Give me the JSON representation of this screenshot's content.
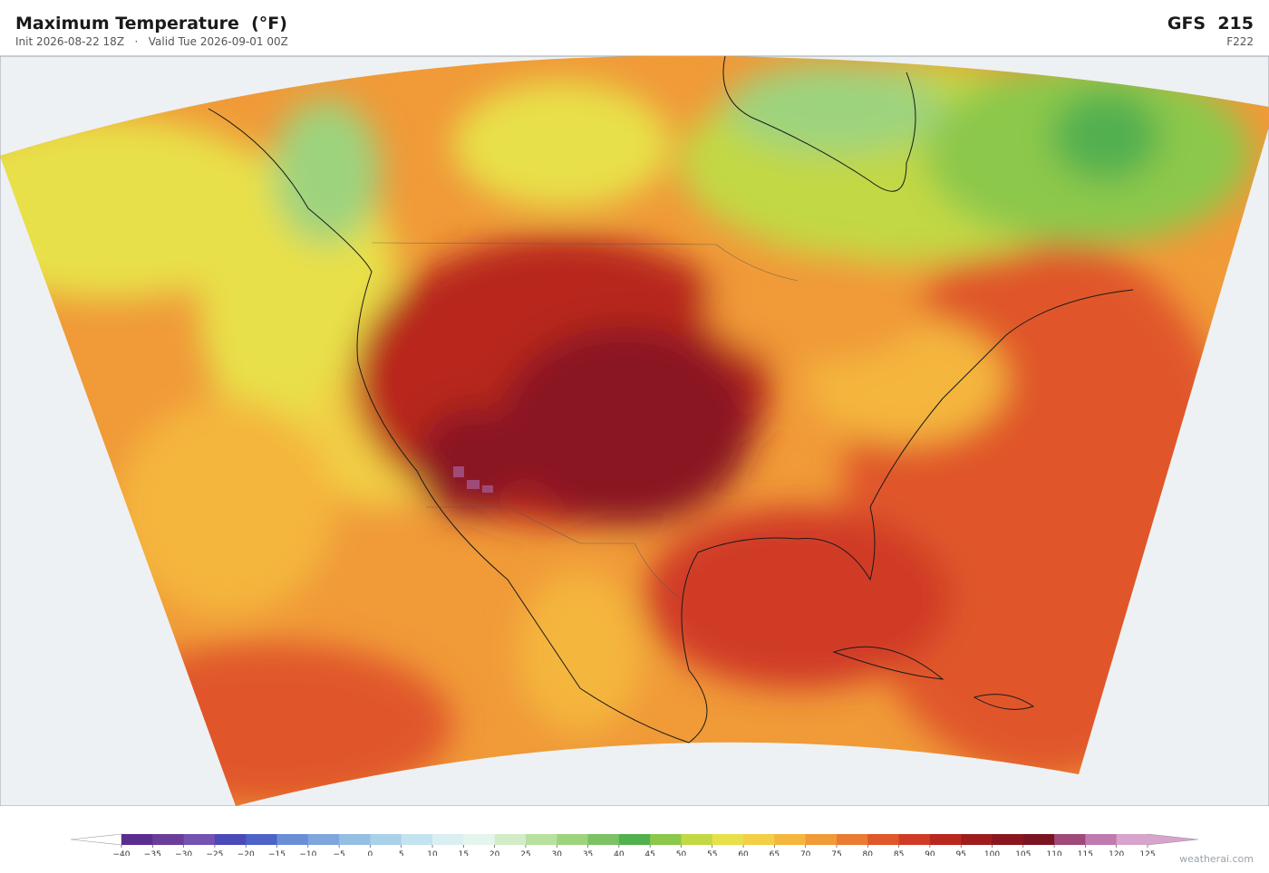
{
  "header": {
    "title": "Maximum Temperature  (°F)",
    "init": "Init 2026-08-22 18Z",
    "separator": "·",
    "valid": "Valid Tue 2026-09-01 00Z",
    "model": "GFS  215",
    "forecast_hour": "F222"
  },
  "colorbar": {
    "ticks": [
      {
        "value": -40,
        "label": "−40"
      },
      {
        "value": -35,
        "label": "−35"
      },
      {
        "value": -30,
        "label": "−30"
      },
      {
        "value": -25,
        "label": "−25"
      },
      {
        "value": -20,
        "label": "−20"
      },
      {
        "value": -15,
        "label": "−15"
      },
      {
        "value": -10,
        "label": "−10"
      },
      {
        "value": -5,
        "label": "−5"
      },
      0,
      5,
      10,
      15,
      20,
      25,
      30,
      35,
      40,
      45,
      50,
      55,
      60,
      65,
      70,
      75,
      80,
      85,
      90,
      95,
      100,
      105,
      110,
      115,
      120,
      125
    ],
    "colors": [
      "#5b2d8e",
      "#6a3d9a",
      "#7452b0",
      "#4a4ab8",
      "#4d63c8",
      "#6a8fd6",
      "#7ea6dd",
      "#93bfe3",
      "#a9d1ea",
      "#c4e3f0",
      "#daeff2",
      "#e6f4ee",
      "#d2ecc8",
      "#b8e09e",
      "#9ed37e",
      "#7cc265",
      "#52b04f",
      "#8cc84b",
      "#c2d845",
      "#e8e04a",
      "#f2cf45",
      "#f4b63e",
      "#f09a38",
      "#e97b32",
      "#e0572b",
      "#d03b26",
      "#b8281f",
      "#9e1c1c",
      "#8a1720",
      "#7a1420",
      "#a04a7a",
      "#c07ab0",
      "#d8a3cc"
    ],
    "under_color": "#ffffff",
    "over_color": "#d8a3cc"
  },
  "watermark": "weatherai.com"
}
